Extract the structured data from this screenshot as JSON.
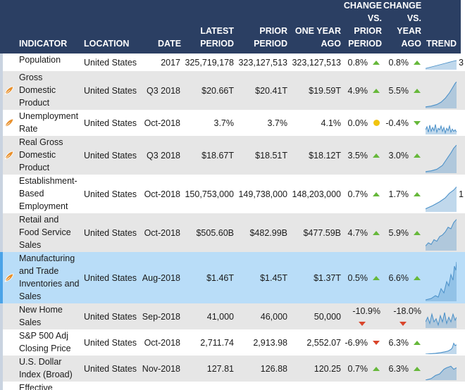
{
  "columns": {
    "indicator": "INDICATOR",
    "location": "LOCATION",
    "date": "DATE",
    "latest": [
      "LATEST",
      "PERIOD"
    ],
    "prior": [
      "PRIOR",
      "PERIOD"
    ],
    "year_ago": [
      "ONE YEAR",
      "AGO"
    ],
    "chg_prior": [
      "CHANGE",
      "VS.",
      "PRIOR",
      "PERIOD"
    ],
    "chg_year": [
      "CHANGE",
      "VS.",
      "YEAR",
      "AGO"
    ],
    "trend": "TREND"
  },
  "rows": [
    {
      "indicator": "Population",
      "location": "United States",
      "date": "2017",
      "latest": "325,719,178",
      "prior": "323,127,513",
      "year_ago": "323,127,513",
      "chg_prior": "0.8%",
      "chg_prior_dir": "up",
      "chg_year": "0.8%",
      "chg_year_dir": "up",
      "extra": "3",
      "leaf": false
    },
    {
      "indicator": "Gross Domestic Product",
      "location": "United States",
      "date": "Q3 2018",
      "latest": "$20.66T",
      "prior": "$20.41T",
      "year_ago": "$19.59T",
      "chg_prior": "4.9%",
      "chg_prior_dir": "up",
      "chg_year": "5.5%",
      "chg_year_dir": "up",
      "extra": "",
      "leaf": true
    },
    {
      "indicator": "Unemployment Rate",
      "location": "United States",
      "date": "Oct-2018",
      "latest": "3.7%",
      "prior": "3.7%",
      "year_ago": "4.1%",
      "chg_prior": "0.0%",
      "chg_prior_dir": "flat",
      "chg_year": "-0.4%",
      "chg_year_dir": "down-good",
      "extra": "",
      "leaf": true
    },
    {
      "indicator": "Real Gross Domestic Product",
      "location": "United States",
      "date": "Q3 2018",
      "latest": "$18.67T",
      "prior": "$18.51T",
      "year_ago": "$18.12T",
      "chg_prior": "3.5%",
      "chg_prior_dir": "up",
      "chg_year": "3.0%",
      "chg_year_dir": "up",
      "extra": "",
      "leaf": true
    },
    {
      "indicator": "Establishment-Based Employment",
      "location": "United States",
      "date": "Oct-2018",
      "latest": "150,753,000",
      "prior": "149,738,000",
      "year_ago": "148,203,000",
      "chg_prior": "0.7%",
      "chg_prior_dir": "up",
      "chg_year": "1.7%",
      "chg_year_dir": "up",
      "extra": "1",
      "leaf": false
    },
    {
      "indicator": "Retail and Food Service Sales",
      "location": "United States",
      "date": "Oct-2018",
      "latest": "$505.60B",
      "prior": "$482.99B",
      "year_ago": "$477.59B",
      "chg_prior": "4.7%",
      "chg_prior_dir": "up",
      "chg_year": "5.9%",
      "chg_year_dir": "up",
      "extra": "",
      "leaf": false
    },
    {
      "indicator": "Manufacturing and Trade Inventories and Sales",
      "location": "United States",
      "date": "Aug-2018",
      "latest": "$1.46T",
      "prior": "$1.45T",
      "year_ago": "$1.37T",
      "chg_prior": "0.5%",
      "chg_prior_dir": "up",
      "chg_year": "6.6%",
      "chg_year_dir": "up",
      "extra": "",
      "leaf": true
    },
    {
      "indicator": "New Home Sales",
      "location": "United States",
      "date": "Sep-2018",
      "latest": "41,000",
      "prior": "46,000",
      "year_ago": "50,000",
      "chg_prior": "-10.9%",
      "chg_prior_dir": "down",
      "chg_year": "-18.0%",
      "chg_year_dir": "down",
      "extra": "",
      "leaf": false
    },
    {
      "indicator": "S&P 500 Adj Closing Price",
      "location": "United States",
      "date": "Oct-2018",
      "latest": "2,711.74",
      "prior": "2,913.98",
      "year_ago": "2,552.07",
      "chg_prior": "-6.9%",
      "chg_prior_dir": "down",
      "chg_year": "6.3%",
      "chg_year_dir": "up",
      "extra": "",
      "leaf": false
    },
    {
      "indicator": "U.S. Dollar Index (Broad)",
      "location": "United States",
      "date": "Nov-2018",
      "latest": "127.81",
      "prior": "126.88",
      "year_ago": "120.25",
      "chg_prior": "0.7%",
      "chg_prior_dir": "up",
      "chg_year": "6.3%",
      "chg_year_dir": "up",
      "extra": "",
      "leaf": false
    },
    {
      "indicator": "Effective",
      "location": "",
      "date": "",
      "latest": "",
      "prior": "",
      "year_ago": "",
      "chg_prior": "",
      "chg_prior_dir": "",
      "chg_year": "",
      "chg_year_dir": "",
      "extra": "",
      "leaf": false
    }
  ],
  "colors": {
    "header_bg": "#2b3f63",
    "up": "#66b83a",
    "down": "#d9452b",
    "flat": "#f1c40f",
    "highlight": "#b9ddf8",
    "sparkline": "#4a90c8"
  }
}
